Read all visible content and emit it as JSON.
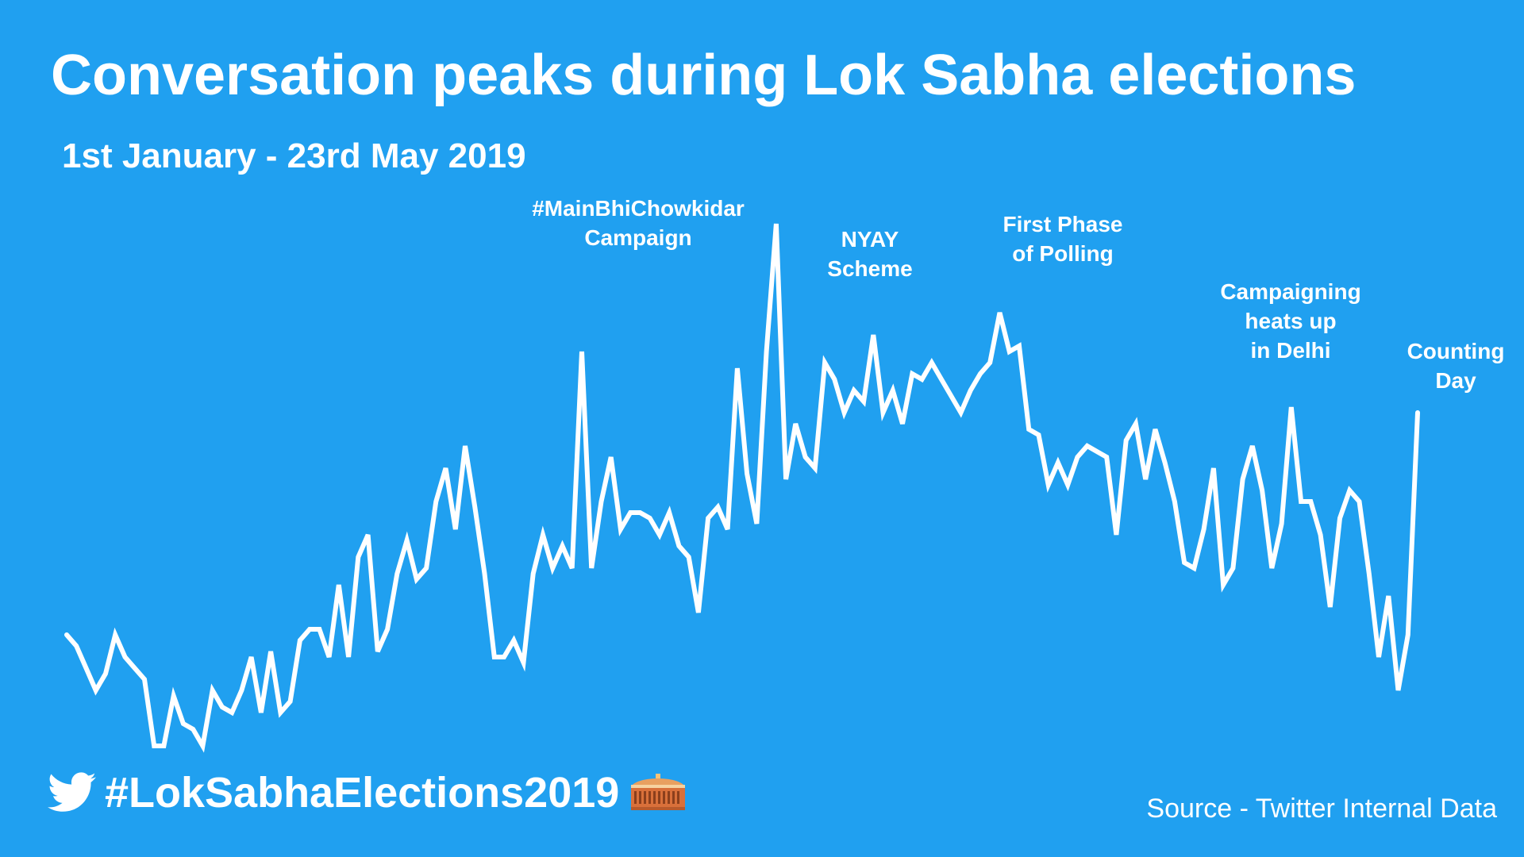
{
  "header": {
    "title": "Conversation peaks during Lok Sabha elections",
    "subtitle": "1st January - 23rd May 2019"
  },
  "footer": {
    "hashtag": "#LokSabhaElections2019",
    "source": "Source - Twitter Internal Data",
    "icons": [
      "twitter-bird-icon",
      "parliament-building-icon"
    ]
  },
  "colors": {
    "background": "#20a0f0",
    "line": "#ffffff",
    "text": "#ffffff"
  },
  "chart_data": {
    "type": "line",
    "title": "Conversation peaks during Lok Sabha elections",
    "subtitle": "1st January - 23rd May 2019",
    "xlabel": "",
    "ylabel": "",
    "x_range": [
      "2019-01-01",
      "2019-05-23"
    ],
    "y_range": [
      0,
      100
    ],
    "grid": false,
    "legend": "none",
    "series": [
      {
        "values": [
          20,
          18,
          14,
          10,
          13,
          20,
          16,
          14,
          12,
          0,
          0,
          9,
          4,
          3,
          0,
          10,
          7,
          6,
          10,
          16,
          6,
          17,
          6,
          8,
          19,
          21,
          21,
          16,
          29,
          16,
          34,
          38,
          17,
          21,
          31,
          37,
          30,
          32,
          44,
          50,
          39,
          54,
          43,
          31,
          16,
          16,
          19,
          15,
          31,
          38,
          32,
          36,
          32,
          71,
          32,
          44,
          52,
          39,
          42,
          42,
          41,
          38,
          42,
          36,
          34,
          24,
          41,
          43,
          39,
          68,
          49,
          40,
          71,
          94,
          48,
          58,
          52,
          50,
          69,
          66,
          60,
          64,
          62,
          74,
          60,
          64,
          58,
          67,
          66,
          69,
          66,
          63,
          60,
          64,
          67,
          69,
          78,
          71,
          72,
          57,
          56,
          47,
          51,
          47,
          52,
          54,
          53,
          52,
          38,
          55,
          58,
          48,
          57,
          51,
          44,
          33,
          32,
          39,
          50,
          29,
          32,
          48,
          54,
          46,
          32,
          40,
          61,
          44,
          44,
          38,
          25,
          41,
          46,
          44,
          31,
          16,
          27,
          10,
          20,
          60
        ]
      }
    ],
    "annotations": [
      {
        "label": "#MainBhiChowkidar\nCampaign",
        "date": "2019-03-16"
      },
      {
        "label": "NYAY\nScheme",
        "date": "2019-03-25"
      },
      {
        "label": "First Phase\nof Polling",
        "date": "2019-04-11"
      },
      {
        "label": "Campaigning\nheats up\nin Delhi",
        "date": "2019-05-08"
      },
      {
        "label": "Counting\nDay",
        "date": "2019-05-23"
      }
    ]
  }
}
